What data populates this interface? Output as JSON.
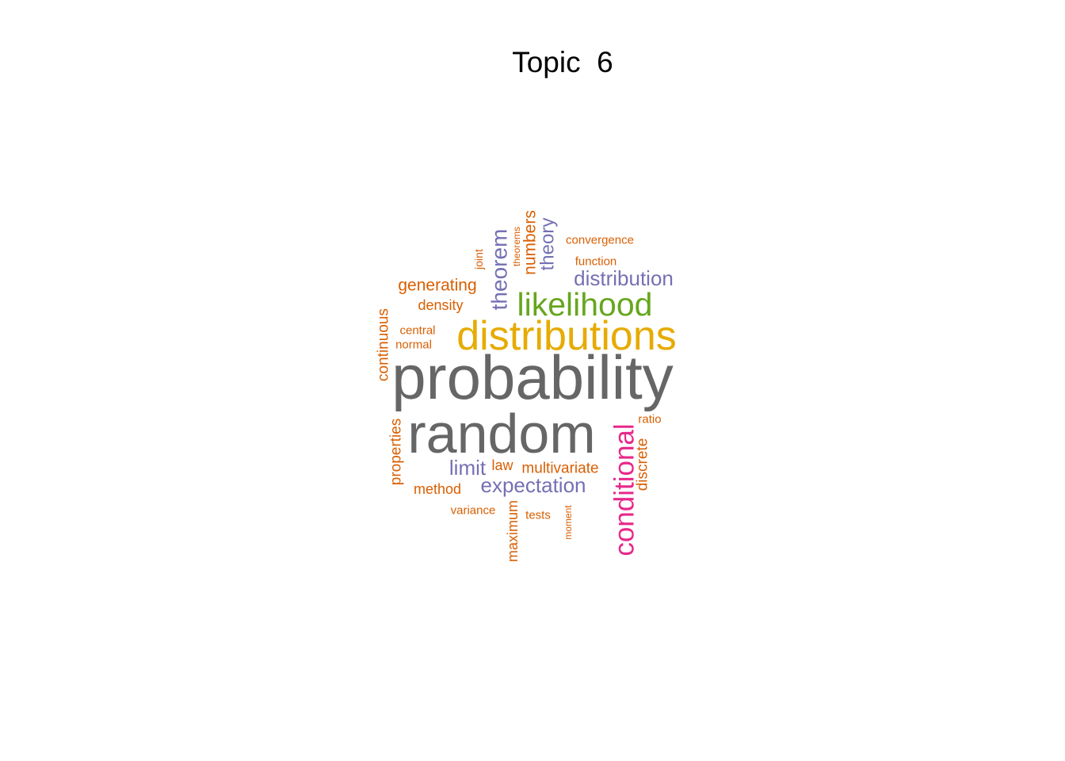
{
  "chart_data": {
    "type": "wordcloud",
    "title": "Topic  6",
    "words": [
      {
        "text": "probability",
        "weight": 100,
        "color": "#666666"
      },
      {
        "text": "random",
        "weight": 85,
        "color": "#666666"
      },
      {
        "text": "distributions",
        "weight": 62,
        "color": "#E6AB02"
      },
      {
        "text": "likelihood",
        "weight": 48,
        "color": "#66A61E"
      },
      {
        "text": "conditional",
        "weight": 41,
        "color": "#E7298A"
      },
      {
        "text": "theorem",
        "weight": 33,
        "color": "#7570B3"
      },
      {
        "text": "distribution",
        "weight": 30,
        "color": "#7570B3"
      },
      {
        "text": "expectation",
        "weight": 30,
        "color": "#7570B3"
      },
      {
        "text": "limit",
        "weight": 30,
        "color": "#7570B3"
      },
      {
        "text": "theory",
        "weight": 27,
        "color": "#7570B3"
      },
      {
        "text": "numbers",
        "weight": 24,
        "color": "#D95F02"
      },
      {
        "text": "generating",
        "weight": 24,
        "color": "#D95F02"
      },
      {
        "text": "continuous",
        "weight": 22,
        "color": "#D95F02"
      },
      {
        "text": "properties",
        "weight": 22,
        "color": "#D95F02"
      },
      {
        "text": "multivariate",
        "weight": 22,
        "color": "#D95F02"
      },
      {
        "text": "discrete",
        "weight": 22,
        "color": "#D95F02"
      },
      {
        "text": "density",
        "weight": 20,
        "color": "#D95F02"
      },
      {
        "text": "law",
        "weight": 20,
        "color": "#D95F02"
      },
      {
        "text": "method",
        "weight": 20,
        "color": "#D95F02"
      },
      {
        "text": "maximum",
        "weight": 20,
        "color": "#D95F02"
      },
      {
        "text": "convergence",
        "weight": 17,
        "color": "#D95F02"
      },
      {
        "text": "function",
        "weight": 17,
        "color": "#D95F02"
      },
      {
        "text": "central",
        "weight": 17,
        "color": "#D95F02"
      },
      {
        "text": "normal",
        "weight": 17,
        "color": "#D95F02"
      },
      {
        "text": "ratio",
        "weight": 17,
        "color": "#D95F02"
      },
      {
        "text": "variance",
        "weight": 17,
        "color": "#D95F02"
      },
      {
        "text": "tests",
        "weight": 17,
        "color": "#D95F02"
      },
      {
        "text": "joint",
        "weight": 15,
        "color": "#D95F02"
      },
      {
        "text": "theorems",
        "weight": 13,
        "color": "#D95F02"
      },
      {
        "text": "moment",
        "weight": 13,
        "color": "#D95F02"
      }
    ]
  }
}
